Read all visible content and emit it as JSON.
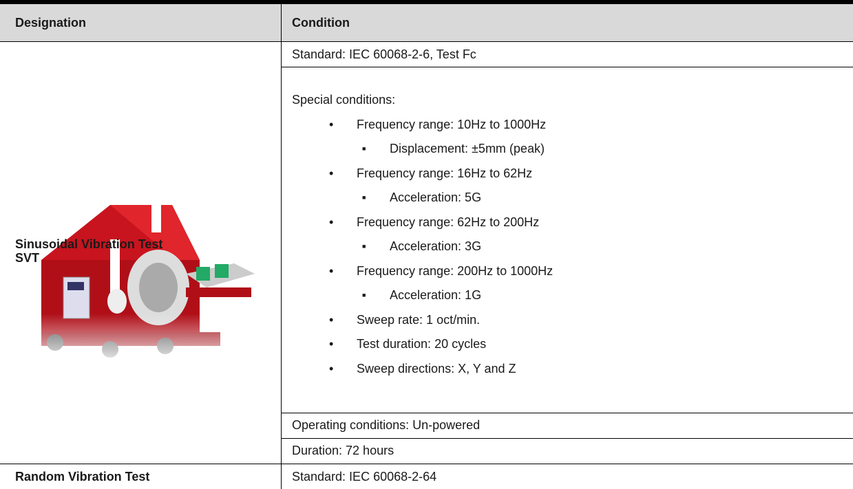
{
  "table": {
    "header": [
      "Designation",
      "Condition"
    ],
    "rows": [
      {
        "designation": [
          "Sinusoidal Vibration Test",
          "SVT"
        ],
        "conditions": [
          {
            "text": "Standard: IEC 60068-2-6, Test Fc"
          },
          {
            "text": "Special conditions:",
            "items": [
              {
                "text": "Frequency range: 10Hz to 1000Hz",
                "subitems": [
                  "Displacement: ±5mm (peak)"
                ]
              },
              {
                "text": "Frequency range: 16Hz to 62Hz",
                "subitems": [
                  "Acceleration: 5G"
                ]
              },
              {
                "text": "Frequency range: 62Hz to 200Hz",
                "subitems": [
                  "Acceleration: 3G"
                ]
              },
              {
                "text": "Frequency range: 200Hz to 1000Hz",
                "subitems": [
                  "Acceleration: 1G"
                ]
              },
              {
                "text": "Sweep rate: 1 oct/min."
              },
              {
                "text": "Test duration: 20 cycles"
              },
              {
                "text": "Sweep directions: X, Y and Z"
              }
            ]
          },
          {
            "text": "Operating conditions: Un-powered"
          },
          {
            "text": "Duration: 72 hours"
          }
        ]
      },
      {
        "designation": [
          "Random Vibration Test"
        ],
        "conditions": [
          {
            "text": "Standard: IEC 60068-2-64"
          }
        ]
      }
    ]
  }
}
